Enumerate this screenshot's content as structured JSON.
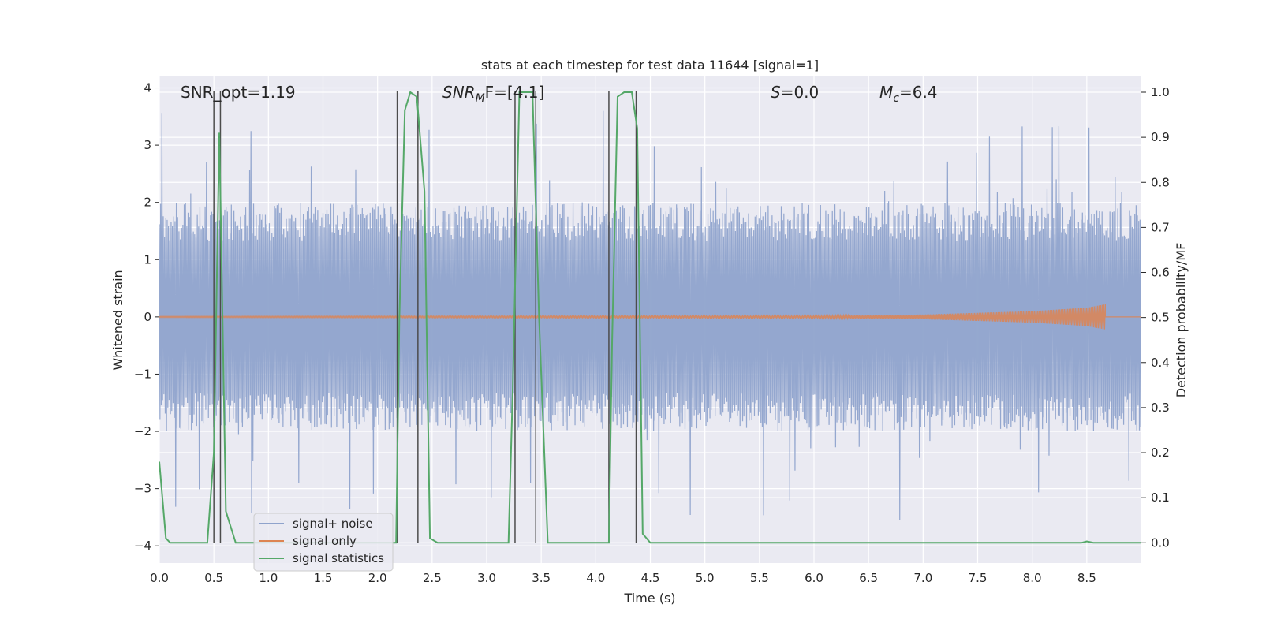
{
  "chart_data": {
    "type": "line",
    "title": "stats at each timestep for test data 11644 [signal=1]",
    "xlabel": "Time (s)",
    "ylabel": "Whitened strain",
    "ylabel_right": "Detection probability/MF",
    "xlim": [
      0.0,
      9.0
    ],
    "ylim": [
      -4.3,
      4.2
    ],
    "ylim_right": [
      -0.045,
      1.035
    ],
    "x_ticks": [
      0.0,
      0.5,
      1.0,
      1.5,
      2.0,
      2.5,
      3.0,
      3.5,
      4.0,
      4.5,
      5.0,
      5.5,
      6.0,
      6.5,
      7.0,
      7.5,
      8.0,
      8.5
    ],
    "x_tick_labels": [
      "0.0",
      "0.5",
      "1.0",
      "1.5",
      "2.0",
      "2.5",
      "3.0",
      "3.5",
      "4.0",
      "4.5",
      "5.0",
      "5.5",
      "6.0",
      "6.5",
      "7.0",
      "7.5",
      "8.0",
      "8.5"
    ],
    "y_ticks": [
      -4,
      -3,
      -2,
      -1,
      0,
      1,
      2,
      3,
      4
    ],
    "y_tick_labels": [
      "−4",
      "−3",
      "−2",
      "−1",
      "0",
      "1",
      "2",
      "3",
      "4"
    ],
    "y_right_ticks": [
      0.0,
      0.1,
      0.2,
      0.3,
      0.4,
      0.5,
      0.6,
      0.7,
      0.8,
      0.9,
      1.0
    ],
    "y_right_tick_labels": [
      "0.0",
      "0.1",
      "0.2",
      "0.3",
      "0.4",
      "0.5",
      "0.6",
      "0.7",
      "0.8",
      "0.9",
      "1.0"
    ],
    "grid": true,
    "legend_position": "lower-left",
    "annotations": {
      "snr_opt": "SNR_opt=1.19",
      "snr_mf_main": "SNR",
      "snr_mf_sub": "M",
      "snr_mf_rest": "F=[4.1]",
      "s_main": "S",
      "s_rest": "=0.0",
      "mc_main": "M",
      "mc_sub": "c",
      "mc_rest": "=6.4"
    },
    "series": [
      {
        "name": "signal+ noise",
        "color": "#8fa3cc",
        "kind": "noise",
        "axis": "left",
        "x_range": [
          0.0,
          9.0
        ],
        "typical_amplitude": 1.9,
        "peak_amplitude": 3.6
      },
      {
        "name": "signal only",
        "color": "#dd8452",
        "kind": "chirp",
        "axis": "left",
        "x_range": [
          0.0,
          8.67
        ],
        "envelope": [
          [
            0.0,
            0.01
          ],
          [
            6.0,
            0.02
          ],
          [
            7.0,
            0.04
          ],
          [
            8.0,
            0.1
          ],
          [
            8.5,
            0.16
          ],
          [
            8.67,
            0.22
          ]
        ]
      },
      {
        "name": "signal statistics",
        "color": "#55a868",
        "kind": "line",
        "axis": "right",
        "x": [
          0.0,
          0.06,
          0.1,
          0.44,
          0.5,
          0.55,
          0.61,
          0.7,
          2.17,
          2.2,
          2.25,
          2.3,
          2.36,
          2.43,
          2.48,
          2.55,
          3.2,
          3.24,
          3.3,
          3.35,
          3.42,
          3.48,
          3.56,
          4.12,
          4.15,
          4.2,
          4.26,
          4.33,
          4.38,
          4.43,
          4.5,
          8.45,
          8.5,
          8.56,
          9.0
        ],
        "y": [
          0.18,
          0.01,
          0.0,
          0.0,
          0.2,
          0.91,
          0.07,
          0.0,
          0.0,
          0.5,
          0.96,
          1.0,
          0.99,
          0.78,
          0.01,
          0.0,
          0.0,
          0.35,
          1.0,
          1.0,
          1.0,
          0.5,
          0.0,
          0.0,
          0.45,
          0.99,
          1.0,
          1.0,
          0.92,
          0.02,
          0.0,
          0.0,
          0.003,
          0.0,
          0.0
        ]
      }
    ],
    "detection_windows": [
      [
        0.5,
        0.56
      ],
      [
        2.18,
        2.37
      ],
      [
        3.26,
        3.45
      ],
      [
        4.12,
        4.37
      ]
    ],
    "detection_line_color": "#4c4c4c"
  }
}
